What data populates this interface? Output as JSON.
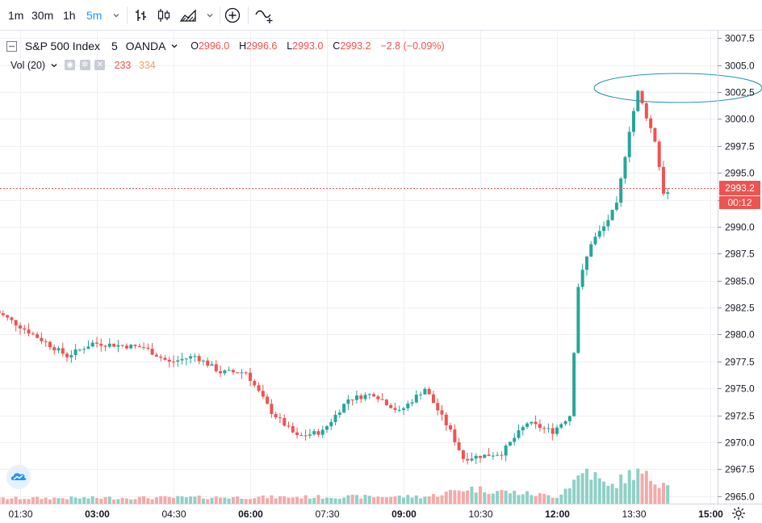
{
  "toolbar": {
    "intervals": [
      "1m",
      "30m",
      "1h",
      "5m"
    ],
    "active_interval": "5m",
    "icons": [
      "chevron-down-icon",
      "bar-chart-icon",
      "candlestick-icon",
      "area-chart-icon",
      "chevron-down-icon",
      "add-indicator-icon",
      "compare-icon"
    ]
  },
  "legend": {
    "symbol": "S&P 500 Index",
    "interval": "5",
    "source": "OANDA",
    "o_label": "O",
    "o_value": "2996.0",
    "h_label": "H",
    "h_value": "2996.6",
    "l_label": "L",
    "l_value": "2993.0",
    "c_label": "C",
    "c_value": "2993.2",
    "change": "−2.8 (−0.09%)"
  },
  "volume_legend": {
    "label": "Vol (20)",
    "value1": "233",
    "value2": "334"
  },
  "price_badge": "2993.2",
  "time_badge": "00:12",
  "colors": {
    "up": "#26a69a",
    "down": "#ef5350",
    "up_volume": "#8fd0c7",
    "down_volume": "#f4aaa8",
    "grid": "#eef0f3",
    "annotation": "#2196b3",
    "active": "#2196f3"
  },
  "chart_data": {
    "type": "candlestick",
    "x_ticks": [
      "01:30",
      "03:00",
      "04:30",
      "06:00",
      "07:30",
      "09:00",
      "10:30",
      "12:00",
      "13:30",
      "15:00"
    ],
    "y_ticks": [
      "2965.0",
      "2967.5",
      "2970.0",
      "2972.5",
      "2975.0",
      "2977.5",
      "2980.0",
      "2982.5",
      "2985.0",
      "2987.5",
      "2990.0",
      "2992.5",
      "2995.0",
      "2997.5",
      "3000.0",
      "3002.5",
      "3005.0",
      "3007.5"
    ],
    "ylim": [
      2964.3,
      3008.2
    ],
    "grid": true,
    "last_price": 2993.2,
    "annotation": "ellipse around high near 3002.5",
    "keypoints": [
      [
        "01:00",
        2982.5
      ],
      [
        "01:30",
        2981.0
      ],
      [
        "02:00",
        2979.5
      ],
      [
        "02:30",
        2978.0
      ],
      [
        "03:00",
        2979.2
      ],
      [
        "03:30",
        2979.0
      ],
      [
        "04:00",
        2978.8
      ],
      [
        "04:30",
        2977.4
      ],
      [
        "05:00",
        2978.0
      ],
      [
        "05:30",
        2976.5
      ],
      [
        "06:00",
        2976.5
      ],
      [
        "06:30",
        2972.8
      ],
      [
        "07:00",
        2970.5
      ],
      [
        "07:30",
        2971.0
      ],
      [
        "08:00",
        2974.0
      ],
      [
        "08:30",
        2974.5
      ],
      [
        "09:00",
        2972.8
      ],
      [
        "09:30",
        2975.0
      ],
      [
        "10:00",
        2971.0
      ],
      [
        "10:15",
        2968.5
      ],
      [
        "11:00",
        2969.0
      ],
      [
        "11:30",
        2971.8
      ],
      [
        "12:00",
        2971.0
      ],
      [
        "12:20",
        2972.5
      ],
      [
        "12:30",
        2984.5
      ],
      [
        "12:45",
        2988.5
      ],
      [
        "13:00",
        2990.0
      ],
      [
        "13:15",
        2992.0
      ],
      [
        "13:30",
        2999.0
      ],
      [
        "13:40",
        3002.5
      ],
      [
        "14:00",
        2998.0
      ],
      [
        "14:10",
        2993.2
      ]
    ],
    "volume_profile": [
      [
        "01:00",
        80
      ],
      [
        "09:30",
        110
      ],
      [
        "10:15",
        233
      ],
      [
        "12:00",
        110
      ],
      [
        "12:35",
        520
      ],
      [
        "13:00",
        240
      ],
      [
        "13:30",
        470
      ],
      [
        "14:00",
        334
      ]
    ]
  }
}
